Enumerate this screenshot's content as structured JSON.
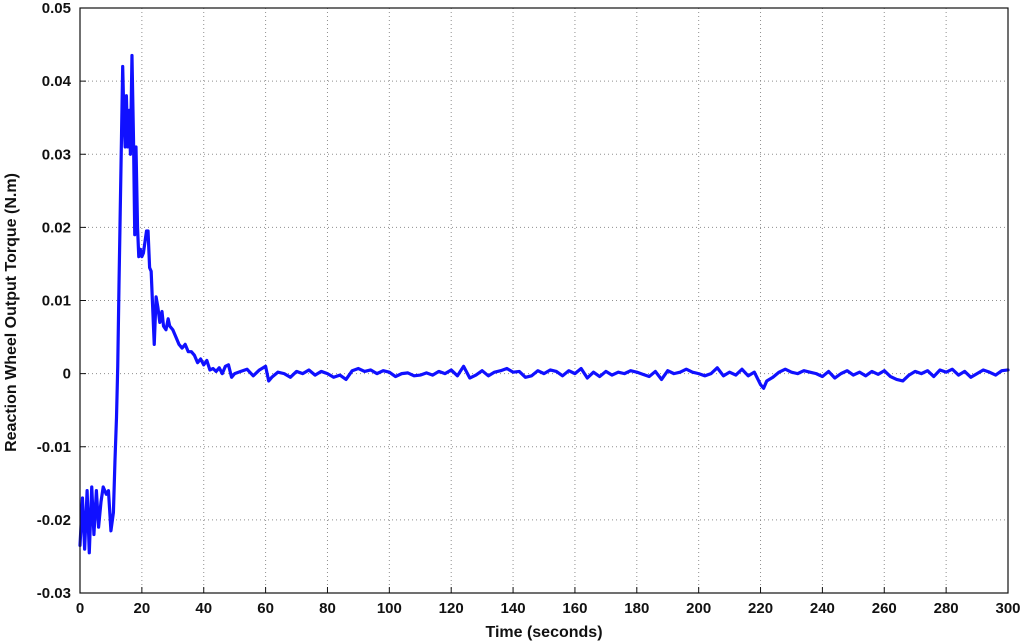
{
  "chart_data": {
    "type": "line",
    "title": "",
    "xlabel": "Time (seconds)",
    "ylabel": "Reaction Wheel Output Torque (N.m)",
    "xlim": [
      0,
      300
    ],
    "ylim": [
      -0.03,
      0.05
    ],
    "x_ticks": [
      0,
      20,
      40,
      60,
      80,
      100,
      120,
      140,
      160,
      180,
      200,
      220,
      240,
      260,
      280,
      300
    ],
    "x_tick_labels": [
      "0",
      "20",
      "40",
      "60",
      "80",
      "100",
      "120",
      "140",
      "160",
      "180",
      "200",
      "220",
      "240",
      "260",
      "280",
      "300"
    ],
    "y_ticks": [
      -0.03,
      -0.02,
      -0.01,
      0,
      0.01,
      0.02,
      0.03,
      0.04,
      0.05
    ],
    "y_tick_labels": [
      "-0.03",
      "-0.02",
      "-0.01",
      "0",
      "0.01",
      "0.02",
      "0.03",
      "0.04",
      "0.05"
    ],
    "grid": true,
    "legend": "none",
    "series": [
      {
        "color": "#1010ff",
        "points": [
          [
            0,
            -0.0235
          ],
          [
            0.8,
            -0.017
          ],
          [
            1.5,
            -0.024
          ],
          [
            2.3,
            -0.016
          ],
          [
            3.0,
            -0.0245
          ],
          [
            3.8,
            -0.0155
          ],
          [
            4.5,
            -0.022
          ],
          [
            5.3,
            -0.016
          ],
          [
            6.0,
            -0.021
          ],
          [
            6.8,
            -0.0175
          ],
          [
            7.5,
            -0.0155
          ],
          [
            8.5,
            -0.0165
          ],
          [
            9.2,
            -0.016
          ],
          [
            10.0,
            -0.0215
          ],
          [
            10.8,
            -0.019
          ],
          [
            11.3,
            -0.012
          ],
          [
            11.8,
            -0.006
          ],
          [
            12.2,
            0.001
          ],
          [
            12.6,
            0.012
          ],
          [
            13.0,
            0.022
          ],
          [
            13.4,
            0.032
          ],
          [
            13.8,
            0.042
          ],
          [
            14.2,
            0.035
          ],
          [
            14.6,
            0.031
          ],
          [
            15.0,
            0.038
          ],
          [
            15.4,
            0.031
          ],
          [
            15.9,
            0.036
          ],
          [
            16.3,
            0.03
          ],
          [
            16.8,
            0.0435
          ],
          [
            17.3,
            0.032
          ],
          [
            17.7,
            0.019
          ],
          [
            18.1,
            0.031
          ],
          [
            18.6,
            0.02
          ],
          [
            19.0,
            0.016
          ],
          [
            19.5,
            0.017
          ],
          [
            20.0,
            0.016
          ],
          [
            20.5,
            0.0165
          ],
          [
            21.0,
            0.018
          ],
          [
            21.5,
            0.0195
          ],
          [
            22.0,
            0.0195
          ],
          [
            22.5,
            0.0145
          ],
          [
            23.0,
            0.014
          ],
          [
            23.5,
            0.009
          ],
          [
            24.0,
            0.004
          ],
          [
            24.6,
            0.0105
          ],
          [
            25.2,
            0.009
          ],
          [
            25.8,
            0.007
          ],
          [
            26.5,
            0.0085
          ],
          [
            27.0,
            0.0065
          ],
          [
            27.8,
            0.006
          ],
          [
            28.5,
            0.0075
          ],
          [
            29.0,
            0.0065
          ],
          [
            30.0,
            0.006
          ],
          [
            31.0,
            0.005
          ],
          [
            32.0,
            0.004
          ],
          [
            33.0,
            0.0035
          ],
          [
            34.0,
            0.004
          ],
          [
            35.0,
            0.003
          ],
          [
            36.0,
            0.003
          ],
          [
            37.0,
            0.0025
          ],
          [
            38.0,
            0.0015
          ],
          [
            39.0,
            0.002
          ],
          [
            40.0,
            0.0012
          ],
          [
            41.0,
            0.0018
          ],
          [
            42.0,
            0.0005
          ],
          [
            43.0,
            0.0007
          ],
          [
            44.0,
            0.0003
          ],
          [
            45.0,
            0.0008
          ],
          [
            46.0,
            0.0
          ],
          [
            47.0,
            0.001
          ],
          [
            48.0,
            0.0012
          ],
          [
            49.0,
            -0.0005
          ],
          [
            50.0,
            0.0
          ],
          [
            52.0,
            0.0003
          ],
          [
            54.0,
            0.0006
          ],
          [
            56.0,
            -0.0003
          ],
          [
            58.0,
            0.0005
          ],
          [
            60.0,
            0.001
          ],
          [
            61.0,
            -0.001
          ],
          [
            62.0,
            -0.0005
          ],
          [
            64.0,
            0.0002
          ],
          [
            66.0,
            0.0
          ],
          [
            68.0,
            -0.0005
          ],
          [
            70.0,
            0.0003
          ],
          [
            72.0,
            0.0
          ],
          [
            74.0,
            0.0005
          ],
          [
            76.0,
            -0.0002
          ],
          [
            78.0,
            0.0003
          ],
          [
            80.0,
            0.0
          ],
          [
            82.0,
            -0.0005
          ],
          [
            84.0,
            -0.0002
          ],
          [
            86.0,
            -0.0008
          ],
          [
            88.0,
            0.0004
          ],
          [
            90.0,
            0.0007
          ],
          [
            92.0,
            0.0003
          ],
          [
            94.0,
            0.0005
          ],
          [
            96.0,
            0.0
          ],
          [
            98.0,
            0.0004
          ],
          [
            100.0,
            0.0002
          ],
          [
            102.0,
            -0.0004
          ],
          [
            104.0,
            0.0
          ],
          [
            106.0,
            0.0001
          ],
          [
            108.0,
            -0.0003
          ],
          [
            110.0,
            -0.0002
          ],
          [
            112.0,
            0.0001
          ],
          [
            114.0,
            -0.0002
          ],
          [
            116.0,
            0.0003
          ],
          [
            118.0,
            0.0
          ],
          [
            120.0,
            0.0005
          ],
          [
            122.0,
            -0.0003
          ],
          [
            124.0,
            0.001
          ],
          [
            126.0,
            -0.0006
          ],
          [
            128.0,
            -0.0002
          ],
          [
            130.0,
            0.0004
          ],
          [
            132.0,
            -0.0003
          ],
          [
            134.0,
            0.0002
          ],
          [
            136.0,
            0.0004
          ],
          [
            138.0,
            0.0007
          ],
          [
            140.0,
            0.0002
          ],
          [
            142.0,
            0.0003
          ],
          [
            144.0,
            -0.0005
          ],
          [
            146.0,
            -0.0003
          ],
          [
            148.0,
            0.0004
          ],
          [
            150.0,
            0.0
          ],
          [
            152.0,
            0.0005
          ],
          [
            154.0,
            0.0003
          ],
          [
            156.0,
            -0.0003
          ],
          [
            158.0,
            0.0004
          ],
          [
            160.0,
            0.0
          ],
          [
            162.0,
            0.0007
          ],
          [
            164.0,
            -0.0006
          ],
          [
            166.0,
            0.0002
          ],
          [
            168.0,
            -0.0004
          ],
          [
            170.0,
            0.0003
          ],
          [
            172.0,
            -0.0002
          ],
          [
            174.0,
            0.0002
          ],
          [
            176.0,
            0.0
          ],
          [
            178.0,
            0.0004
          ],
          [
            180.0,
            0.0002
          ],
          [
            182.0,
            -0.0001
          ],
          [
            184.0,
            -0.0004
          ],
          [
            186.0,
            0.0003
          ],
          [
            188.0,
            -0.0008
          ],
          [
            190.0,
            0.0004
          ],
          [
            192.0,
            0.0
          ],
          [
            194.0,
            0.0002
          ],
          [
            196.0,
            0.0006
          ],
          [
            198.0,
            0.0002
          ],
          [
            200.0,
            0.0
          ],
          [
            202.0,
            -0.0003
          ],
          [
            204.0,
            0.0
          ],
          [
            206.0,
            0.0008
          ],
          [
            208.0,
            -0.0003
          ],
          [
            210.0,
            0.0002
          ],
          [
            212.0,
            -0.0002
          ],
          [
            214.0,
            0.0006
          ],
          [
            216.0,
            -0.0003
          ],
          [
            218.0,
            0.0002
          ],
          [
            220.0,
            -0.0015
          ],
          [
            221.0,
            -0.002
          ],
          [
            222.0,
            -0.001
          ],
          [
            224.0,
            -0.0005
          ],
          [
            226.0,
            0.0002
          ],
          [
            228.0,
            0.0006
          ],
          [
            230.0,
            0.0002
          ],
          [
            232.0,
            0.0
          ],
          [
            234.0,
            0.0004
          ],
          [
            236.0,
            0.0002
          ],
          [
            238.0,
            0.0
          ],
          [
            240.0,
            -0.0004
          ],
          [
            242.0,
            0.0003
          ],
          [
            244.0,
            -0.0006
          ],
          [
            246.0,
            0.0
          ],
          [
            248.0,
            0.0004
          ],
          [
            250.0,
            -0.0002
          ],
          [
            252.0,
            0.0002
          ],
          [
            254.0,
            -0.0003
          ],
          [
            256.0,
            0.0003
          ],
          [
            258.0,
            -0.0001
          ],
          [
            260.0,
            0.0004
          ],
          [
            262.0,
            -0.0004
          ],
          [
            264.0,
            -0.0008
          ],
          [
            266.0,
            -0.001
          ],
          [
            268.0,
            -0.0002
          ],
          [
            270.0,
            0.0003
          ],
          [
            272.0,
            0.0
          ],
          [
            274.0,
            0.0004
          ],
          [
            276.0,
            -0.0004
          ],
          [
            278.0,
            0.0005
          ],
          [
            280.0,
            0.0002
          ],
          [
            282.0,
            0.0006
          ],
          [
            284.0,
            -0.0002
          ],
          [
            286.0,
            0.0003
          ],
          [
            288.0,
            -0.0005
          ],
          [
            290.0,
            0.0
          ],
          [
            292.0,
            0.0005
          ],
          [
            294.0,
            0.0002
          ],
          [
            296.0,
            -0.0002
          ],
          [
            298.0,
            0.0004
          ],
          [
            300.0,
            0.0005
          ]
        ]
      }
    ]
  }
}
